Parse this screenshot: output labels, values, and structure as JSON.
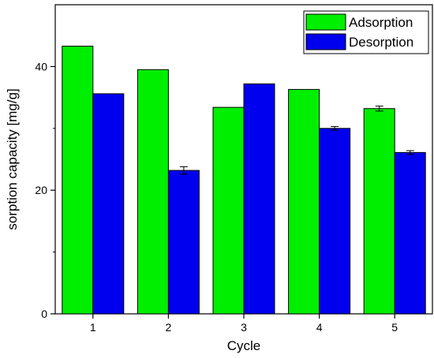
{
  "chart_data": {
    "type": "bar",
    "xlabel": "Cycle",
    "ylabel": "sorption capacity [mg/g]",
    "categories": [
      "1",
      "2",
      "3",
      "4",
      "5"
    ],
    "ylim": [
      0,
      50
    ],
    "yticks": [
      "0",
      "20",
      "40"
    ],
    "ytick_values": [
      0,
      20,
      40
    ],
    "grid": false,
    "legend_position": "top-right",
    "series": [
      {
        "name": "Adsorption",
        "color": "#00ee00",
        "values": [
          43.3,
          39.5,
          33.4,
          36.3,
          33.2
        ],
        "errors": [
          0,
          0,
          0,
          0,
          0.4
        ]
      },
      {
        "name": "Desorption",
        "color": "#0000ee",
        "values": [
          35.6,
          23.2,
          37.2,
          30.0,
          26.1
        ],
        "errors": [
          0,
          0.6,
          0,
          0.3,
          0.3
        ]
      }
    ]
  }
}
